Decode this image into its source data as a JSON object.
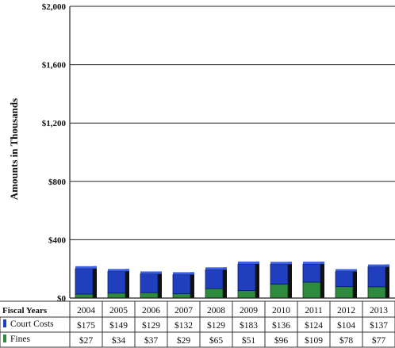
{
  "chart_data": {
    "type": "bar",
    "stacked": true,
    "title": "",
    "ylabel": "Amounts in Thousands",
    "xlabel": "Fiscal Years",
    "ylim": [
      0,
      2000
    ],
    "yticks": [
      "$0",
      "$400",
      "$800",
      "$1,200",
      "$1,600",
      "$2,000"
    ],
    "ytick_values": [
      0,
      400,
      800,
      1200,
      1600,
      2000
    ],
    "grid": true,
    "categories": [
      "2004",
      "2005",
      "2006",
      "2007",
      "2008",
      "2009",
      "2010",
      "2011",
      "2012",
      "2013"
    ],
    "series": [
      {
        "name": "Fines",
        "color": "#2e8b3e",
        "values": [
          27,
          34,
          37,
          29,
          65,
          51,
          96,
          109,
          78,
          77
        ],
        "labels": [
          "$27",
          "$34",
          "$37",
          "$29",
          "$65",
          "$51",
          "$96",
          "$109",
          "$78",
          "$77"
        ]
      },
      {
        "name": "Court Costs",
        "color": "#1f3fbf",
        "values": [
          175,
          149,
          129,
          132,
          129,
          183,
          136,
          124,
          104,
          137
        ],
        "labels": [
          "$175",
          "$149",
          "$129",
          "$132",
          "$129",
          "$183",
          "$136",
          "$124",
          "$104",
          "$137"
        ]
      }
    ],
    "legend_placement": "data-table"
  }
}
